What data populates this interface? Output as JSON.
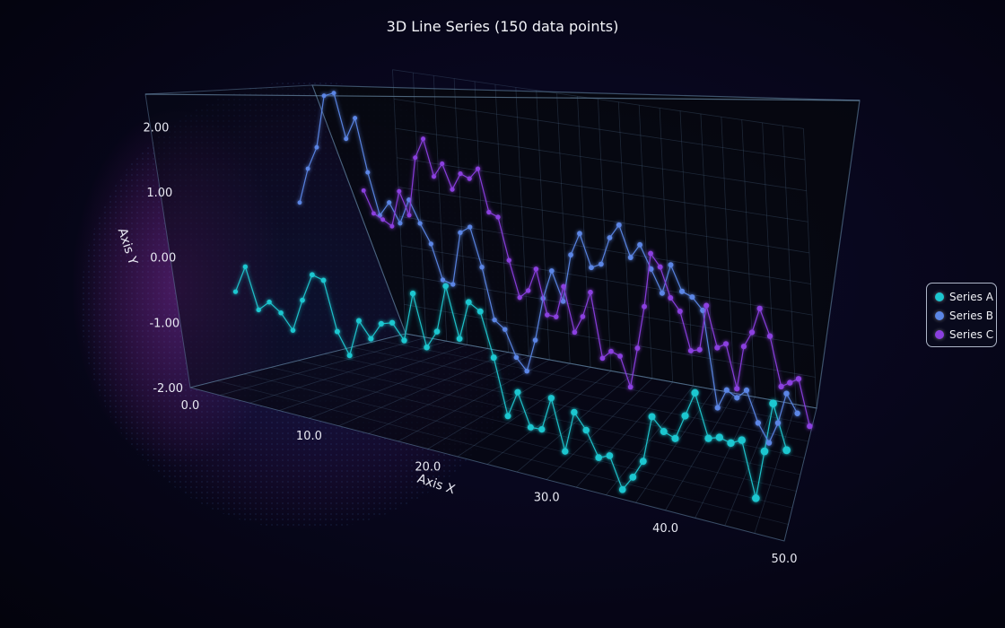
{
  "chart_data": {
    "type": "line",
    "title": "3D Line Series (150 data points)",
    "xlabel": "Axis X",
    "ylabel": "Axis Y",
    "xlim": [
      0,
      50
    ],
    "ylim": [
      -2,
      2.5
    ],
    "x_ticks": [
      "0.0",
      "10.0",
      "20.0",
      "30.0",
      "40.0",
      "50.0"
    ],
    "y_ticks": [
      "-2.00",
      "-1.00",
      "0.00",
      "1.00",
      "2.00"
    ],
    "grid": true,
    "legend_position": "right",
    "series": [
      {
        "name": "Series A",
        "color": "#1cc7d0",
        "x": [
          1,
          2,
          3,
          4,
          5,
          6,
          7,
          8,
          9,
          10,
          11,
          12,
          13,
          14,
          15,
          16,
          17,
          18,
          19,
          20,
          21,
          22,
          23,
          24,
          25,
          26,
          27,
          28,
          29,
          30,
          31,
          32,
          33,
          34,
          35,
          36,
          37,
          38,
          39,
          40,
          41,
          42,
          43,
          44,
          45,
          46,
          47,
          48,
          49,
          50
        ],
        "y": [
          -0.6,
          -0.15,
          -0.78,
          -0.6,
          -0.72,
          -0.95,
          -0.4,
          0.08,
          0.05,
          -0.75,
          -1.1,
          -0.45,
          -0.7,
          -0.38,
          -0.3,
          -0.55,
          0.35,
          -0.55,
          -0.2,
          0.7,
          -0.2,
          0.55,
          0.45,
          -0.35,
          -1.4,
          -0.88,
          -1.5,
          -1.48,
          -0.8,
          -1.8,
          -0.95,
          -1.25,
          -1.75,
          -1.65,
          -2.3,
          -1.98,
          -1.58,
          -0.55,
          -0.8,
          -0.88,
          -0.3,
          0.3,
          -0.65,
          -0.55,
          -0.6,
          -0.45,
          -1.75,
          -0.55,
          0.7,
          -0.35
        ]
      },
      {
        "name": "Series B",
        "color": "#5b86e6",
        "x": [
          1,
          2,
          3,
          4,
          5,
          6,
          7,
          8,
          9,
          10,
          11,
          12,
          13,
          14,
          15,
          16,
          17,
          18,
          19,
          20,
          21,
          22,
          23,
          24,
          25,
          26,
          27,
          28,
          29,
          30,
          31,
          32,
          33,
          34,
          35,
          36,
          37,
          38,
          39,
          40,
          41,
          42,
          43,
          44,
          45,
          46,
          47,
          48,
          49,
          50
        ],
        "y": [
          0.6,
          1.2,
          1.6,
          2.5,
          2.6,
          1.9,
          2.3,
          1.45,
          0.78,
          1.05,
          0.75,
          1.2,
          0.85,
          0.55,
          -0.02,
          -0.05,
          0.9,
          1.05,
          0.4,
          -0.48,
          -0.6,
          -1.05,
          -1.25,
          -0.65,
          0.15,
          0.7,
          0.2,
          1.1,
          1.55,
          0.98,
          1.1,
          1.65,
          1.95,
          1.4,
          1.7,
          1.3,
          0.9,
          1.5,
          1.05,
          1.0,
          0.8,
          -1.05,
          -0.65,
          -0.75,
          -0.55,
          -1.15,
          -1.5,
          -1.05,
          -0.4,
          -0.75
        ]
      },
      {
        "name": "Series C",
        "color": "#8b3fe0",
        "x": [
          1,
          2,
          3,
          4,
          5,
          6,
          7,
          8,
          9,
          10,
          11,
          12,
          13,
          14,
          15,
          16,
          17,
          18,
          19,
          20,
          21,
          22,
          23,
          24,
          25,
          26,
          27,
          28,
          29,
          30,
          31,
          32,
          33,
          34,
          35,
          36,
          37,
          38,
          39,
          40,
          41,
          42,
          43,
          44,
          45,
          46,
          47,
          48,
          49,
          50
        ],
        "y": [
          0.6,
          0.25,
          0.18,
          0.1,
          0.72,
          0.35,
          1.35,
          1.7,
          1.1,
          1.35,
          0.95,
          1.25,
          1.2,
          1.4,
          0.7,
          0.65,
          -0.05,
          -0.65,
          -0.5,
          -0.1,
          -0.85,
          -0.85,
          -0.3,
          -1.05,
          -0.75,
          -0.3,
          -1.4,
          -1.25,
          -1.3,
          -1.8,
          -1.1,
          -0.35,
          0.6,
          0.4,
          -0.1,
          -0.3,
          -0.95,
          -0.9,
          -0.1,
          -0.8,
          -0.7,
          -1.45,
          -0.68,
          -0.4,
          0.05,
          -0.4,
          -1.25,
          -1.15,
          -1.05,
          -1.85
        ]
      }
    ]
  }
}
